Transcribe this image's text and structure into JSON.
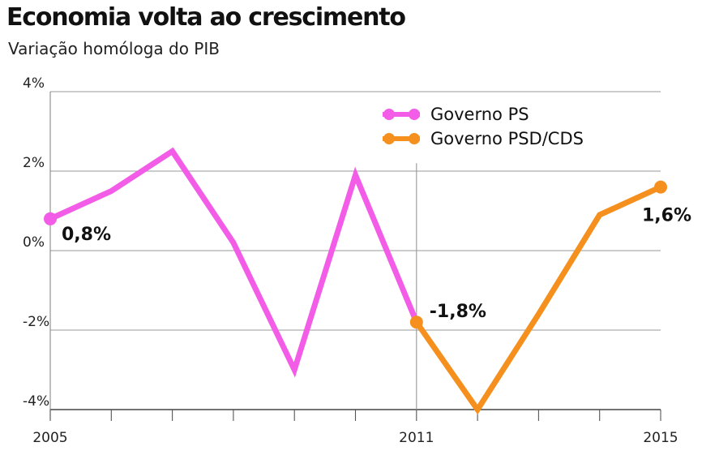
{
  "title": "Economia volta ao crescimento",
  "subtitle": "Variação homóloga do PIB",
  "chart_data": {
    "type": "line",
    "title": "Economia volta ao crescimento",
    "subtitle": "Variação homóloga do PIB",
    "xlabel": "",
    "ylabel": "",
    "x": [
      2005,
      2006,
      2007,
      2008,
      2009,
      2010,
      2011,
      2012,
      2013,
      2014,
      2015
    ],
    "x_tick_labels": [
      {
        "x": 2005,
        "label": "2005"
      },
      {
        "x": 2011,
        "label": "2011"
      },
      {
        "x": 2015,
        "label": "2015"
      }
    ],
    "y_ticks": [
      {
        "value": 4,
        "label": "4%"
      },
      {
        "value": 2,
        "label": "2%"
      },
      {
        "value": 0,
        "label": "0%"
      },
      {
        "value": -2,
        "label": "-2%"
      },
      {
        "value": -4,
        "label": "-4%"
      }
    ],
    "xlim": [
      2005,
      2015
    ],
    "ylim": [
      -4,
      4
    ],
    "grid": "horizontal",
    "legend_position": "top-right",
    "series": [
      {
        "name": "Governo PS",
        "color": "#f25ce6",
        "x": [
          2005,
          2006,
          2007,
          2008,
          2009,
          2010,
          2011
        ],
        "values": [
          0.8,
          1.5,
          2.5,
          0.2,
          -3.0,
          1.9,
          -1.8
        ]
      },
      {
        "name": "Governo PSD/CDS",
        "color": "#f5901e",
        "x": [
          2011,
          2012,
          2013,
          2014,
          2015
        ],
        "values": [
          -1.8,
          -4.0,
          -1.6,
          0.9,
          1.6
        ]
      }
    ],
    "annotations": [
      {
        "x": 2005,
        "y": 0.8,
        "text": "0,8%",
        "position": "below-right"
      },
      {
        "x": 2011,
        "y": -1.8,
        "text": "-1,8%",
        "position": "above-right"
      },
      {
        "x": 2015,
        "y": 1.6,
        "text": "1,6%",
        "position": "below-left"
      }
    ]
  }
}
